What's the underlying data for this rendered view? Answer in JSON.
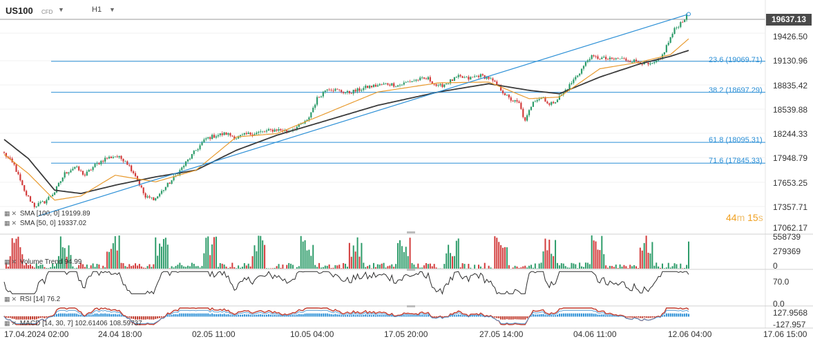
{
  "header": {
    "symbol": "US100",
    "instrument_type": "CFD",
    "timeframe": "H1"
  },
  "price_box": "19637.13",
  "timer": {
    "minutes": "44",
    "minutes_unit": "m",
    "seconds": "15",
    "seconds_unit": "s"
  },
  "chart_data": {
    "type": "line",
    "price_axis": [
      "19426.50",
      "19130.96",
      "18835.42",
      "18539.88",
      "18244.33",
      "17948.79",
      "17653.25",
      "17357.71",
      "17062.17"
    ],
    "volume_axis": [
      "558739",
      "279369",
      "0"
    ],
    "rsi_axis": [
      "70.0",
      "0.0"
    ],
    "macd_axis": [
      "127.9568",
      "-127.957"
    ],
    "x_ticks": [
      "17.04.2024  02:00",
      "24.04  18:00",
      "02.05  11:00",
      "10.05  04:00",
      "17.05  20:00",
      "27.05  14:00",
      "04.06  11:00",
      "12.06  04:00",
      "17.06  15:00"
    ],
    "fib_levels": [
      {
        "label": "23.6 (19069.71)",
        "value": 19069.71
      },
      {
        "label": "38.2 (18697.29)",
        "value": 18697.29
      },
      {
        "label": "61.8 (18095.31)",
        "value": 18095.31
      },
      {
        "label": "71.6 (17845.33)",
        "value": 17845.33
      }
    ],
    "last_price": 19637.13,
    "close_anchors": [
      [
        0,
        17960
      ],
      [
        5,
        17820
      ],
      [
        10,
        17500
      ],
      [
        15,
        17330
      ],
      [
        20,
        17380
      ],
      [
        25,
        17500
      ],
      [
        30,
        17720
      ],
      [
        35,
        17800
      ],
      [
        40,
        17700
      ],
      [
        45,
        17820
      ],
      [
        50,
        17900
      ],
      [
        55,
        17930
      ],
      [
        60,
        17880
      ],
      [
        65,
        17700
      ],
      [
        70,
        17430
      ],
      [
        75,
        17420
      ],
      [
        80,
        17560
      ],
      [
        85,
        17690
      ],
      [
        90,
        17850
      ],
      [
        95,
        18000
      ],
      [
        100,
        18140
      ],
      [
        105,
        18180
      ],
      [
        110,
        18200
      ],
      [
        115,
        18150
      ],
      [
        120,
        18190
      ],
      [
        125,
        18210
      ],
      [
        130,
        18230
      ],
      [
        135,
        18250
      ],
      [
        140,
        18230
      ],
      [
        145,
        18280
      ],
      [
        150,
        18350
      ],
      [
        155,
        18620
      ],
      [
        160,
        18750
      ],
      [
        165,
        18720
      ],
      [
        170,
        18690
      ],
      [
        175,
        18720
      ],
      [
        180,
        18760
      ],
      [
        185,
        18780
      ],
      [
        190,
        18800
      ],
      [
        195,
        18780
      ],
      [
        200,
        18820
      ],
      [
        205,
        18850
      ],
      [
        210,
        18860
      ],
      [
        215,
        18760
      ],
      [
        220,
        18820
      ],
      [
        225,
        18880
      ],
      [
        230,
        18860
      ],
      [
        235,
        18900
      ],
      [
        240,
        18870
      ],
      [
        245,
        18760
      ],
      [
        250,
        18620
      ],
      [
        255,
        18560
      ],
      [
        258,
        18340
      ],
      [
        262,
        18600
      ],
      [
        267,
        18640
      ],
      [
        270,
        18540
      ],
      [
        275,
        18640
      ],
      [
        280,
        18780
      ],
      [
        285,
        18940
      ],
      [
        290,
        19120
      ],
      [
        295,
        19110
      ],
      [
        300,
        19090
      ],
      [
        305,
        19100
      ],
      [
        310,
        19080
      ],
      [
        315,
        19060
      ],
      [
        320,
        19020
      ],
      [
        325,
        19090
      ],
      [
        328,
        19250
      ],
      [
        332,
        19450
      ],
      [
        336,
        19560
      ],
      [
        339,
        19637
      ]
    ],
    "sma_long": {
      "name": "SMA [100, 0]",
      "value": "19199.89",
      "color": "#3a3a3a",
      "anchors": [
        [
          0,
          18130
        ],
        [
          12,
          17900
        ],
        [
          25,
          17520
        ],
        [
          38,
          17480
        ],
        [
          55,
          17580
        ],
        [
          75,
          17680
        ],
        [
          95,
          17760
        ],
        [
          115,
          18000
        ],
        [
          135,
          18180
        ],
        [
          160,
          18360
        ],
        [
          185,
          18540
        ],
        [
          215,
          18700
        ],
        [
          240,
          18800
        ],
        [
          260,
          18720
        ],
        [
          275,
          18680
        ],
        [
          295,
          18880
        ],
        [
          315,
          19040
        ],
        [
          330,
          19130
        ],
        [
          339,
          19200
        ]
      ]
    },
    "sma_short": {
      "name": "SMA [50, 0]",
      "value": "19337.02",
      "color": "#e89a2e",
      "anchors": [
        [
          0,
          17950
        ],
        [
          12,
          17720
        ],
        [
          25,
          17400
        ],
        [
          38,
          17450
        ],
        [
          55,
          17700
        ],
        [
          75,
          17620
        ],
        [
          95,
          17760
        ],
        [
          115,
          18160
        ],
        [
          135,
          18200
        ],
        [
          160,
          18450
        ],
        [
          185,
          18700
        ],
        [
          215,
          18810
        ],
        [
          240,
          18820
        ],
        [
          260,
          18620
        ],
        [
          275,
          18640
        ],
        [
          295,
          18980
        ],
        [
          315,
          19060
        ],
        [
          330,
          19150
        ],
        [
          339,
          19340
        ]
      ]
    },
    "trendline": [
      [
        17,
        17210
      ],
      [
        339,
        19637
      ]
    ],
    "volume": {
      "name": "Volume Trend",
      "value": "94.99",
      "max": 558739
    },
    "rsi": {
      "name": "RSI [14]",
      "value": "76.2",
      "last": 76.2
    },
    "macd": {
      "name": "MACD [14, 30, 7]",
      "macd_value": "102.61406",
      "signal_value": "108.59737"
    },
    "colors": {
      "up": "#2e9c6a",
      "down": "#d23b3b",
      "fib": "#2b8fd6",
      "macd": "#c0392b",
      "macd_hist_pos": "#2b8fd6"
    }
  }
}
